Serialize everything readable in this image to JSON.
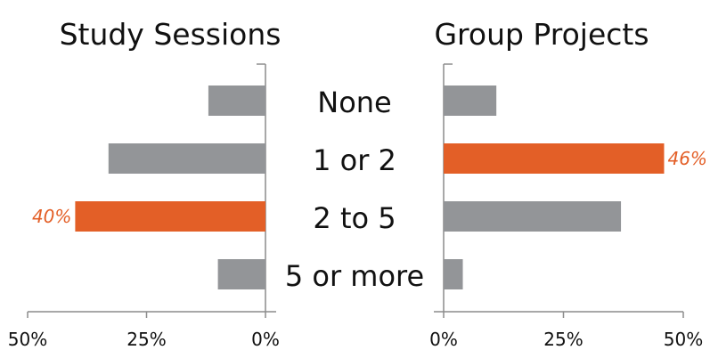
{
  "chart_data": {
    "type": "bar",
    "categories": [
      "None",
      "1 or 2",
      "2 to 5",
      "5 or more"
    ],
    "colors": {
      "default": "#939598",
      "highlight": "#e35f27"
    },
    "panels": [
      {
        "title": "Study Sessions",
        "direction": "left",
        "xlim": [
          0,
          50
        ],
        "ticks": [
          "50%",
          "25%",
          "0%"
        ],
        "values": [
          12,
          33,
          40,
          10
        ],
        "highlight_index": 2,
        "value_label": "40%"
      },
      {
        "title": "Group Projects",
        "direction": "right",
        "xlim": [
          0,
          50
        ],
        "ticks": [
          "0%",
          "25%",
          "50%"
        ],
        "values": [
          11,
          46,
          37,
          4
        ],
        "highlight_index": 1,
        "value_label": "46%"
      }
    ]
  }
}
